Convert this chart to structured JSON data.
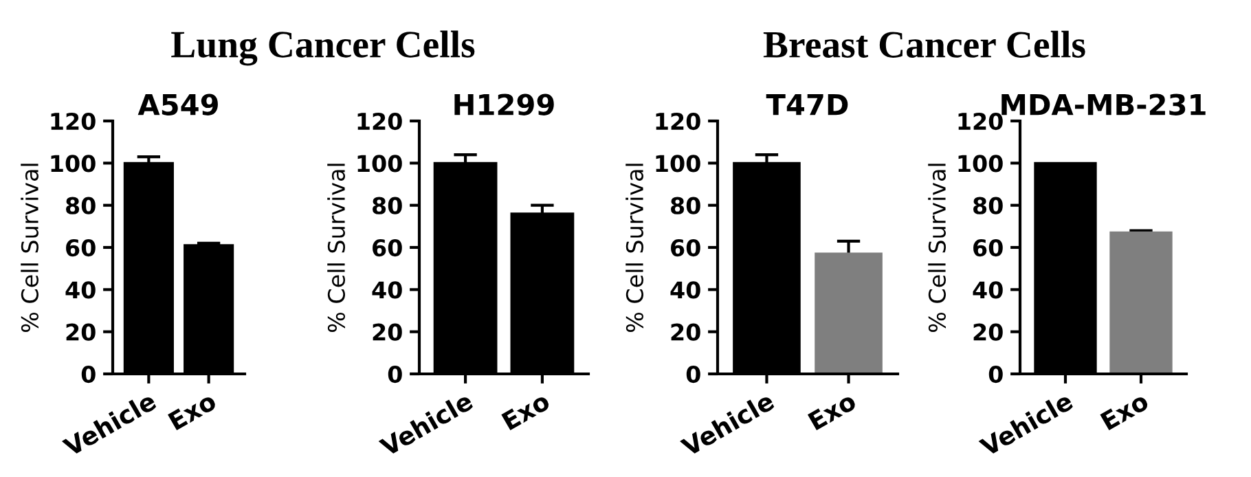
{
  "chart_data": [
    {
      "type": "bar",
      "title": "A549",
      "ylabel": "% Cell Survival",
      "annotations": [
        "Lung Cancer Cells"
      ],
      "categories": [
        "Vehicle",
        "Exo"
      ],
      "values": [
        100,
        61
      ],
      "errors": [
        3,
        1
      ],
      "colors": [
        "#000000",
        "#000000"
      ],
      "ylim": [
        0,
        120
      ],
      "yticks": [
        0,
        20,
        40,
        60,
        80,
        100,
        120
      ],
      "grid": false,
      "legend": false
    },
    {
      "type": "bar",
      "title": "H1299",
      "ylabel": "% Cell Survival",
      "categories": [
        "Vehicle",
        "Exo"
      ],
      "values": [
        100,
        76
      ],
      "errors": [
        4,
        4
      ],
      "colors": [
        "#000000",
        "#000000"
      ],
      "ylim": [
        0,
        120
      ],
      "yticks": [
        0,
        20,
        40,
        60,
        80,
        100,
        120
      ],
      "grid": false,
      "legend": false
    },
    {
      "type": "bar",
      "title": "T47D",
      "ylabel": "% Cell Survival",
      "annotations": [
        "Breast Cancer Cells"
      ],
      "categories": [
        "Vehicle",
        "Exo"
      ],
      "values": [
        100,
        57
      ],
      "errors": [
        4,
        6
      ],
      "colors": [
        "#000000",
        "#7f7f7f"
      ],
      "ylim": [
        0,
        120
      ],
      "yticks": [
        0,
        20,
        40,
        60,
        80,
        100,
        120
      ],
      "grid": false,
      "legend": false
    },
    {
      "type": "bar",
      "title": "MDA-MB-231",
      "ylabel": "% Cell Survival",
      "categories": [
        "Vehicle",
        "Exo"
      ],
      "values": [
        100,
        67
      ],
      "errors": [
        null,
        1
      ],
      "colors": [
        "#000000",
        "#7f7f7f"
      ],
      "ylim": [
        0,
        120
      ],
      "yticks": [
        0,
        20,
        40,
        60,
        80,
        100,
        120
      ],
      "grid": false,
      "legend": false
    }
  ]
}
